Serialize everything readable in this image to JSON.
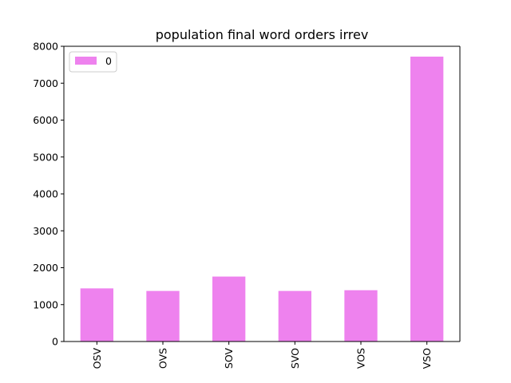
{
  "chart_data": {
    "type": "bar",
    "title": "population final word orders irrev",
    "xlabel": "",
    "ylabel": "",
    "categories": [
      "OSV",
      "OVS",
      "SOV",
      "SVO",
      "VOS",
      "VSO"
    ],
    "series": [
      {
        "name": "0",
        "values": [
          1440,
          1370,
          1760,
          1370,
          1390,
          7720
        ],
        "color": "#ee82ee"
      }
    ],
    "ylim": [
      0,
      8000
    ],
    "yticks": [
      0,
      1000,
      2000,
      3000,
      4000,
      5000,
      6000,
      7000,
      8000
    ],
    "ytick_labels": [
      "0",
      "1000",
      "2000",
      "3000",
      "4000",
      "5000",
      "6000",
      "7000",
      "8000"
    ],
    "grid": false,
    "legend_position": "top-left",
    "xtick_rotation": "vertical"
  }
}
